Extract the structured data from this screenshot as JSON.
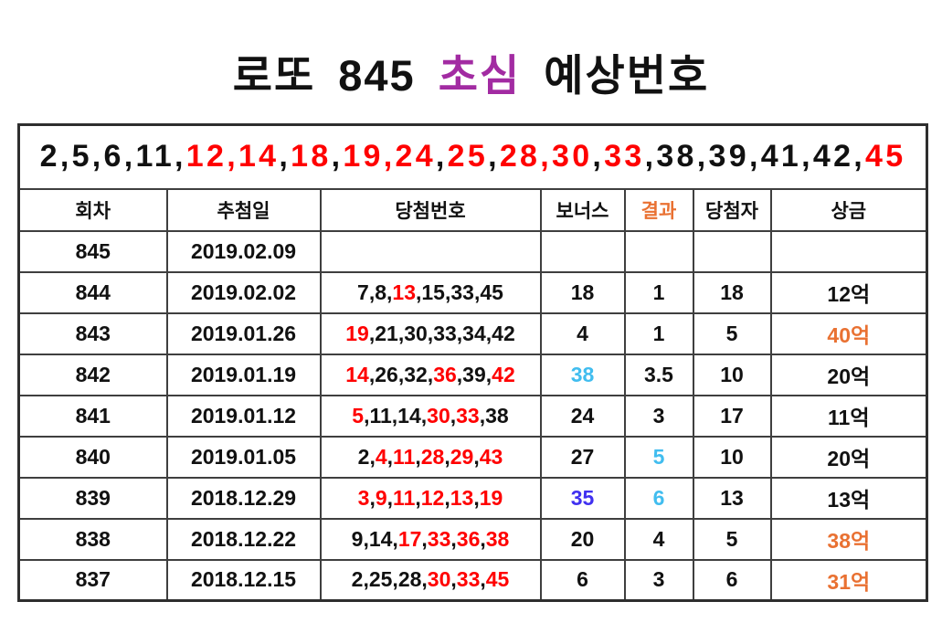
{
  "title": {
    "segments": [
      {
        "text": "로또 845 ",
        "color": "#111111"
      },
      {
        "text": "초심",
        "color": "#A22BA2"
      },
      {
        "text": " 예상번호",
        "color": "#111111"
      }
    ]
  },
  "prediction_numbers": {
    "tokens": [
      {
        "t": "2",
        "c": "k"
      },
      {
        "t": ",",
        "c": "k"
      },
      {
        "t": "5",
        "c": "k"
      },
      {
        "t": ",",
        "c": "k"
      },
      {
        "t": "6",
        "c": "k"
      },
      {
        "t": ",",
        "c": "k"
      },
      {
        "t": "11",
        "c": "k"
      },
      {
        "t": ",",
        "c": "k"
      },
      {
        "t": "12",
        "c": "r"
      },
      {
        "t": ",",
        "c": "r"
      },
      {
        "t": "14",
        "c": "r"
      },
      {
        "t": ",",
        "c": "k"
      },
      {
        "t": "18",
        "c": "r"
      },
      {
        "t": ",",
        "c": "k"
      },
      {
        "t": "19",
        "c": "r"
      },
      {
        "t": ",",
        "c": "r"
      },
      {
        "t": "24",
        "c": "r"
      },
      {
        "t": ",",
        "c": "k"
      },
      {
        "t": "25",
        "c": "r"
      },
      {
        "t": ",",
        "c": "k"
      },
      {
        "t": "28",
        "c": "r"
      },
      {
        "t": ",",
        "c": "r"
      },
      {
        "t": "30",
        "c": "r"
      },
      {
        "t": ",",
        "c": "k"
      },
      {
        "t": "33",
        "c": "r"
      },
      {
        "t": ",",
        "c": "k"
      },
      {
        "t": "38",
        "c": "k"
      },
      {
        "t": ",",
        "c": "k"
      },
      {
        "t": "39",
        "c": "k"
      },
      {
        "t": ",",
        "c": "k"
      },
      {
        "t": "41",
        "c": "k"
      },
      {
        "t": ",",
        "c": "k"
      },
      {
        "t": "42",
        "c": "k"
      },
      {
        "t": ",",
        "c": "k"
      },
      {
        "t": "45",
        "c": "r"
      }
    ]
  },
  "table": {
    "headers": [
      {
        "label": "회차",
        "c": "k"
      },
      {
        "label": "추첨일",
        "c": "k"
      },
      {
        "label": "당첨번호",
        "c": "k"
      },
      {
        "label": "보너스",
        "c": "k"
      },
      {
        "label": "결과",
        "c": "o"
      },
      {
        "label": "당첨자",
        "c": "k"
      },
      {
        "label": "상금",
        "c": "k"
      }
    ],
    "rows": [
      {
        "round": "845",
        "date": "2019.02.09",
        "numbers": [],
        "bonus": "",
        "bonus_c": "k",
        "result": "",
        "result_c": "k",
        "winners": "",
        "prize": "",
        "prize_c": "k"
      },
      {
        "round": "844",
        "date": "2019.02.02",
        "numbers": [
          {
            "n": "7",
            "c": "k"
          },
          {
            "n": "8",
            "c": "k"
          },
          {
            "n": "13",
            "c": "r"
          },
          {
            "n": "15",
            "c": "k"
          },
          {
            "n": "33",
            "c": "k"
          },
          {
            "n": "45",
            "c": "k"
          }
        ],
        "bonus": "18",
        "bonus_c": "k",
        "result": "1",
        "result_c": "k",
        "winners": "18",
        "prize": "12억",
        "prize_c": "k"
      },
      {
        "round": "843",
        "date": "2019.01.26",
        "numbers": [
          {
            "n": "19",
            "c": "r"
          },
          {
            "n": "21",
            "c": "k"
          },
          {
            "n": "30",
            "c": "k"
          },
          {
            "n": "33",
            "c": "k"
          },
          {
            "n": "34",
            "c": "k"
          },
          {
            "n": "42",
            "c": "k"
          }
        ],
        "bonus": "4",
        "bonus_c": "k",
        "result": "1",
        "result_c": "k",
        "winners": "5",
        "prize": "40억",
        "prize_c": "o"
      },
      {
        "round": "842",
        "date": "2019.01.19",
        "numbers": [
          {
            "n": "14",
            "c": "r"
          },
          {
            "n": "26",
            "c": "k"
          },
          {
            "n": "32",
            "c": "k"
          },
          {
            "n": "36",
            "c": "r"
          },
          {
            "n": "39",
            "c": "k"
          },
          {
            "n": "42",
            "c": "r"
          }
        ],
        "bonus": "38",
        "bonus_c": "lb",
        "result": "3.5",
        "result_c": "k",
        "winners": "10",
        "prize": "20억",
        "prize_c": "k"
      },
      {
        "round": "841",
        "date": "2019.01.12",
        "numbers": [
          {
            "n": "5",
            "c": "r"
          },
          {
            "n": "11",
            "c": "k"
          },
          {
            "n": "14",
            "c": "k"
          },
          {
            "n": "30",
            "c": "r"
          },
          {
            "n": "33",
            "c": "r"
          },
          {
            "n": "38",
            "c": "k"
          }
        ],
        "bonus": "24",
        "bonus_c": "k",
        "result": "3",
        "result_c": "k",
        "winners": "17",
        "prize": "11억",
        "prize_c": "k"
      },
      {
        "round": "840",
        "date": "2019.01.05",
        "numbers": [
          {
            "n": "2",
            "c": "k"
          },
          {
            "n": "4",
            "c": "r"
          },
          {
            "n": "11",
            "c": "r"
          },
          {
            "n": "28",
            "c": "r"
          },
          {
            "n": "29",
            "c": "r"
          },
          {
            "n": "43",
            "c": "r"
          }
        ],
        "bonus": "27",
        "bonus_c": "k",
        "result": "5",
        "result_c": "lb",
        "winners": "10",
        "prize": "20억",
        "prize_c": "k"
      },
      {
        "round": "839",
        "date": "2018.12.29",
        "numbers": [
          {
            "n": "3",
            "c": "r"
          },
          {
            "n": "9",
            "c": "r"
          },
          {
            "n": "11",
            "c": "r"
          },
          {
            "n": "12",
            "c": "r"
          },
          {
            "n": "13",
            "c": "r"
          },
          {
            "n": "19",
            "c": "r"
          }
        ],
        "bonus": "35",
        "bonus_c": "b",
        "result": "6",
        "result_c": "lb",
        "winners": "13",
        "prize": "13억",
        "prize_c": "k"
      },
      {
        "round": "838",
        "date": "2018.12.22",
        "numbers": [
          {
            "n": "9",
            "c": "k"
          },
          {
            "n": "14",
            "c": "k"
          },
          {
            "n": "17",
            "c": "r"
          },
          {
            "n": "33",
            "c": "r"
          },
          {
            "n": "36",
            "c": "r"
          },
          {
            "n": "38",
            "c": "r"
          }
        ],
        "bonus": "20",
        "bonus_c": "k",
        "result": "4",
        "result_c": "k",
        "winners": "5",
        "prize": "38억",
        "prize_c": "o"
      },
      {
        "round": "837",
        "date": "2018.12.15",
        "numbers": [
          {
            "n": "2",
            "c": "k"
          },
          {
            "n": "25",
            "c": "k"
          },
          {
            "n": "28",
            "c": "k"
          },
          {
            "n": "30",
            "c": "r"
          },
          {
            "n": "33",
            "c": "r"
          },
          {
            "n": "45",
            "c": "r"
          }
        ],
        "bonus": "6",
        "bonus_c": "k",
        "result": "3",
        "result_c": "k",
        "winners": "6",
        "prize": "31억",
        "prize_c": "o"
      }
    ]
  },
  "colors": {
    "k": "#111111",
    "r": "#FF0000",
    "o": "#E97132",
    "lb": "#41BDEF",
    "b": "#4030F0",
    "purple": "#A22BA2",
    "border": "#3f3f3f"
  }
}
